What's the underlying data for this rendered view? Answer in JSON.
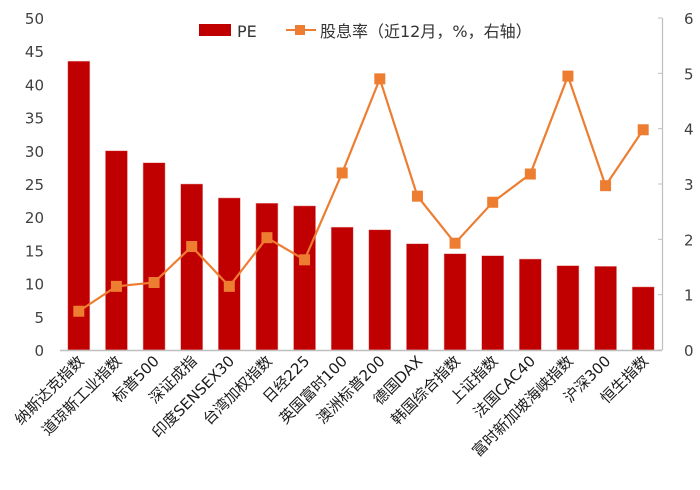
{
  "chart_data": {
    "type": "bar+line",
    "title": "",
    "categories": [
      "纳斯达克指数",
      "道琼斯工业指数",
      "标普500",
      "深证成指",
      "印度SENSEX30",
      "台湾加权指数",
      "日经225",
      "英国富时100",
      "澳洲标普200",
      "德国DAX",
      "韩国综合指数",
      "上证指数",
      "法国CAC40",
      "富时新加坡海峡指数",
      "沪深300",
      "恒生指数"
    ],
    "series": [
      {
        "name": "PE",
        "type": "bar",
        "axis": "left",
        "color": "#C00000",
        "values": [
          43.5,
          30.0,
          28.2,
          25.0,
          22.9,
          22.1,
          21.7,
          18.5,
          18.1,
          16.0,
          14.5,
          14.2,
          13.7,
          12.7,
          12.6,
          9.5
        ]
      },
      {
        "name": "股息率（近12月，%，右轴）",
        "type": "line",
        "axis": "right",
        "color": "#ED7D31",
        "marker": "square",
        "values": [
          0.7,
          1.15,
          1.22,
          1.87,
          1.15,
          2.03,
          1.63,
          3.2,
          4.9,
          2.78,
          1.93,
          2.67,
          3.18,
          4.95,
          2.97,
          3.98
        ]
      }
    ],
    "left_axis": {
      "min": 0,
      "max": 50,
      "ticks": [
        "0",
        "5",
        "10",
        "15",
        "20",
        "25",
        "30",
        "35",
        "40",
        "45",
        "50"
      ]
    },
    "right_axis": {
      "min": 0,
      "max": 6,
      "ticks": [
        "0",
        "1",
        "2",
        "3",
        "4",
        "5",
        "6"
      ]
    },
    "xlabel": "",
    "ylabel": "",
    "y2label": "",
    "grid": false,
    "legend_position": "top"
  },
  "legend": {
    "pe_label": "PE",
    "yield_label": "股息率（近12月，%，右轴）"
  }
}
